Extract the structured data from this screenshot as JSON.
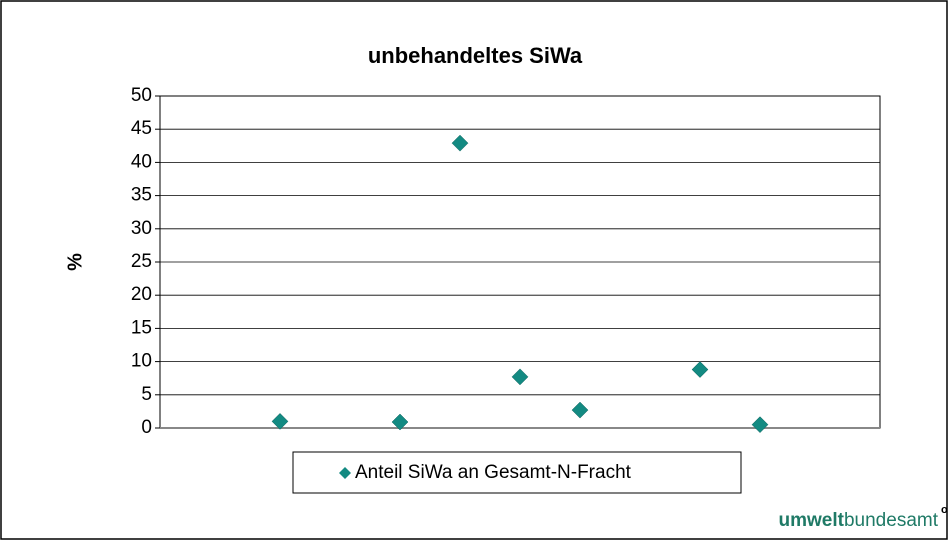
{
  "chart_data": {
    "type": "scatter",
    "title": "unbehandeltes SiWa",
    "y_label": "%",
    "x": [
      2,
      4,
      5,
      6,
      7,
      9,
      10
    ],
    "series": [
      {
        "name": "Anteil SiWa an Gesamt-N-Fracht",
        "color": "#138a82",
        "values": [
          1,
          0.9,
          42.9,
          7.7,
          2.7,
          8.8,
          0.5
        ]
      }
    ],
    "xlim": [
      0,
      12
    ],
    "ylim": [
      0,
      50
    ],
    "yticks": [
      0,
      5,
      10,
      15,
      20,
      25,
      30,
      35,
      40,
      45,
      50
    ],
    "grid": true,
    "legend": "bottom"
  },
  "logo": {
    "bold": "umwelt",
    "rest": "bundesamt"
  }
}
